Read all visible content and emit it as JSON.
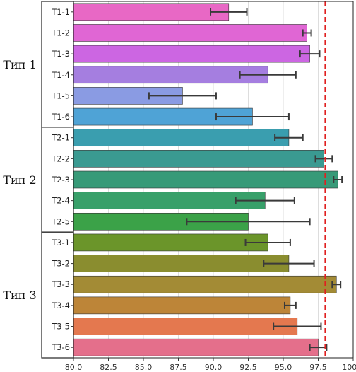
{
  "chart_data": {
    "type": "bar",
    "orientation": "horizontal",
    "categories": [
      "T1-1",
      "T1-2",
      "T1-3",
      "T1-4",
      "T1-5",
      "T1-6",
      "T2-1",
      "T2-2",
      "T2-3",
      "T2-4",
      "T2-5",
      "T3-1",
      "T3-2",
      "T3-3",
      "T3-4",
      "T3-5",
      "T3-6"
    ],
    "values": [
      91.1,
      96.7,
      96.9,
      93.9,
      87.8,
      92.8,
      95.4,
      97.9,
      98.9,
      93.7,
      92.5,
      93.9,
      95.4,
      98.8,
      95.5,
      96.0,
      97.5
    ],
    "errors": [
      1.3,
      0.3,
      0.7,
      2.0,
      2.4,
      2.6,
      1.0,
      0.6,
      0.3,
      2.1,
      4.4,
      1.6,
      1.8,
      0.3,
      0.4,
      1.7,
      0.6
    ],
    "colors": [
      "#e868c5",
      "#e066d4",
      "#cc66e2",
      "#a57ee0",
      "#8a9be3",
      "#4fa3d6",
      "#3a9eaf",
      "#3a9a91",
      "#379a78",
      "#38a06a",
      "#3ba248",
      "#6b952a",
      "#8a8d2f",
      "#a38b35",
      "#bd8538",
      "#e4784f",
      "#e46f8b"
    ],
    "groups": [
      {
        "label": "Тип 1",
        "members": 6
      },
      {
        "label": "Тип 2",
        "members": 5
      },
      {
        "label": "Тип 3",
        "members": 6
      }
    ],
    "xlim": [
      80.0,
      100.0
    ],
    "xticks": [
      "80.0",
      "82.5",
      "85.0",
      "87.5",
      "90.0",
      "92.5",
      "95.0",
      "97.5",
      "100.0"
    ],
    "reference_line": {
      "x": 98.0,
      "color": "#e02020",
      "style": "dashed"
    },
    "grid": true,
    "title": "",
    "xlabel": "",
    "ylabel": ""
  }
}
